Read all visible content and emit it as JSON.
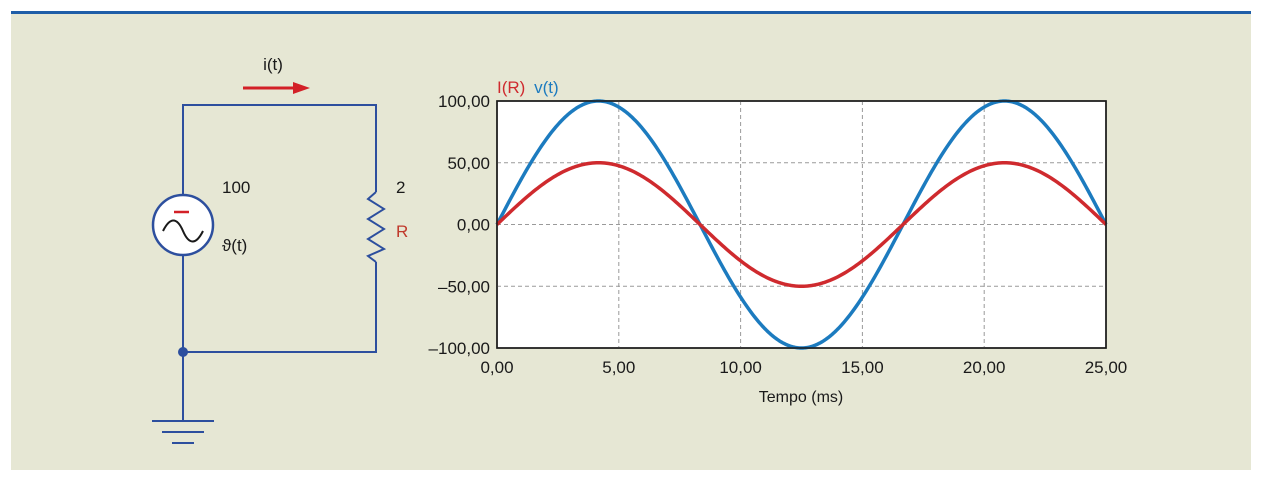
{
  "colors": {
    "background": "#e6e7d4",
    "top_rule": "#1f5ea8",
    "wire": "#2d4f9e",
    "arrow": "#d32027",
    "resistor_label": "#c0392b",
    "current_series": "#cf2a2e",
    "voltage_series": "#1c7bbf",
    "grid": "#9a9a9a",
    "text": "#1a1a1a"
  },
  "circuit": {
    "current_label": "i(t)",
    "source_value": "100",
    "source_label": "ϑ(t)",
    "resistor_value": "2",
    "resistor_label": "R",
    "icons": [
      "ac-voltage-source-icon",
      "resistor-icon",
      "ground-icon",
      "current-arrow-icon"
    ]
  },
  "chart_data": {
    "type": "line",
    "title": "",
    "legend": [
      "I(R)",
      "v(t)"
    ],
    "legend_position": "top-left",
    "xlabel": "Tempo (ms)",
    "ylabel": "",
    "xlim": [
      0,
      25
    ],
    "ylim": [
      -100,
      100
    ],
    "x_ticks": [
      "0,00",
      "5,00",
      "10,00",
      "15,00",
      "20,00",
      "25,00"
    ],
    "x_tick_values": [
      0,
      5,
      10,
      15,
      20,
      25
    ],
    "y_ticks": [
      "100,00",
      "50,00",
      "0,00",
      "–50,00",
      "–100,00"
    ],
    "y_tick_values": [
      100,
      50,
      0,
      -50,
      -100
    ],
    "grid": true,
    "series": [
      {
        "name": "I(R)",
        "amplitude": 50,
        "period_ms": 16.667,
        "x": [
          0,
          4.17,
          8.33,
          12.5,
          16.67,
          20.83,
          25
        ],
        "y": [
          0,
          50,
          0,
          -50,
          0,
          50,
          0
        ]
      },
      {
        "name": "v(t)",
        "amplitude": 100,
        "period_ms": 16.667,
        "x": [
          0,
          4.17,
          8.33,
          12.5,
          16.67,
          20.83,
          25
        ],
        "y": [
          0,
          100,
          0,
          -100,
          0,
          100,
          0
        ]
      }
    ]
  }
}
